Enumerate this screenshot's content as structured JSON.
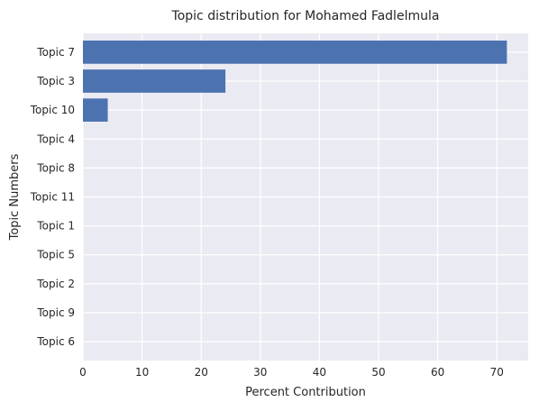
{
  "chart_data": {
    "type": "bar",
    "orientation": "horizontal",
    "title": "Topic distribution for Mohamed Fadlelmula",
    "xlabel": "Percent Contribution",
    "ylabel": "Topic Numbers",
    "categories": [
      "Topic 7",
      "Topic 3",
      "Topic 10",
      "Topic 4",
      "Topic 8",
      "Topic 11",
      "Topic 1",
      "Topic 5",
      "Topic 2",
      "Topic 9",
      "Topic 6"
    ],
    "values": [
      71.7,
      24.1,
      4.2,
      0,
      0,
      0,
      0,
      0,
      0,
      0,
      0
    ],
    "xlim": [
      0,
      75.3
    ],
    "xticks": [
      0,
      10,
      20,
      30,
      40,
      50,
      60,
      70
    ],
    "grid": true,
    "legend": "none",
    "colors": {
      "bar": "#4c72b0",
      "plot_background": "#eaeaf2",
      "grid": "#ffffff",
      "text": "#262626"
    }
  }
}
